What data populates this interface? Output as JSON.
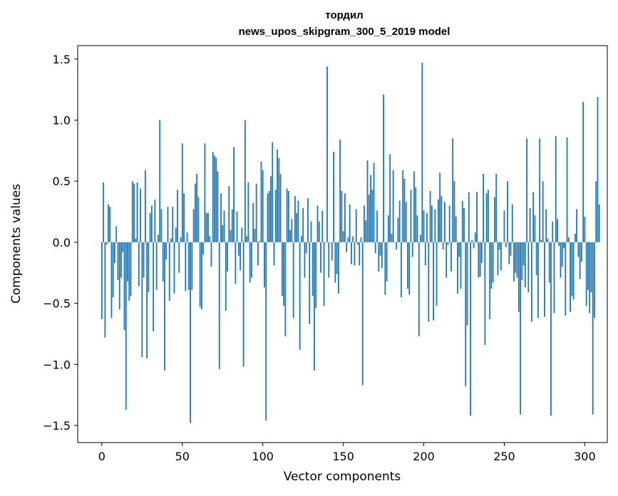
{
  "chart_data": {
    "type": "bar",
    "title": "тордил",
    "subtitle": "news_upos_skipgram_300_5_2019 model",
    "xlabel": "Vector components",
    "ylabel": "Components values",
    "xlim": [
      -15,
      314
    ],
    "ylim": [
      -1.64,
      1.61
    ],
    "x_ticks": [
      0,
      50,
      100,
      150,
      200,
      250,
      300
    ],
    "y_ticks": [
      -1.5,
      -1.0,
      -0.5,
      0.0,
      0.5,
      1.0,
      1.5
    ],
    "y_tick_labels": [
      "−1.5",
      "−1.0",
      "−0.5",
      "0.0",
      "0.5",
      "1.0",
      "1.5"
    ],
    "bar_color": "#1f77b4",
    "x_start": 0,
    "values": [
      -0.63,
      0.49,
      -0.78,
      -0.02,
      0.31,
      0.29,
      -0.62,
      -0.45,
      -0.17,
      0.13,
      -0.31,
      -0.55,
      -0.29,
      -0.08,
      -0.72,
      -1.37,
      -0.32,
      -0.48,
      -0.44,
      0.5,
      0.48,
      0.03,
      0.49,
      -0.36,
      0.44,
      -0.94,
      -0.29,
      0.59,
      -0.95,
      -0.41,
      0.24,
      0.3,
      -0.73,
      0.35,
      -0.39,
      0.06,
      1.0,
      0.27,
      -0.32,
      -1.05,
      -0.14,
      0.29,
      -0.48,
      0.03,
      0.29,
      -0.42,
      0.12,
      0.43,
      -0.25,
      0.04,
      0.81,
      0.4,
      -0.4,
      0.08,
      -0.39,
      -1.48,
      -0.39,
      0.27,
      0.48,
      0.56,
      0.37,
      -0.53,
      -0.55,
      -0.1,
      0.81,
      0.24,
      0.24,
      0.05,
      -0.2,
      0.74,
      0.71,
      0.69,
      0.58,
      -1.04,
      0.4,
      0.14,
      0.26,
      -0.56,
      -0.24,
      0.46,
      0.1,
      0.27,
      0.78,
      -0.34,
      0.25,
      -0.11,
      -0.23,
      0.12,
      -1.02,
      1.0,
      0.05,
      0.49,
      -0.33,
      -0.29,
      0.32,
      0.11,
      0.48,
      -0.19,
      0.01,
      0.66,
      0.59,
      -0.37,
      -1.46,
      0.4,
      0.42,
      0.54,
      0.82,
      -0.19,
      0.43,
      0.76,
      0.69,
      0.56,
      -0.44,
      -0.52,
      -0.77,
      0.44,
      0.42,
      0.1,
      0.19,
      -0.62,
      0.38,
      0.24,
      0.34,
      -0.88,
      0.05,
      0.28,
      -0.29,
      -0.09,
      0.36,
      -0.67,
      0.17,
      -0.44,
      -1.05,
      -0.54,
      0.3,
      0.17,
      -0.25,
      0.26,
      -0.52,
      0.0,
      1.44,
      -0.29,
      0.0,
      -0.15,
      0.74,
      -0.33,
      -0.26,
      -0.42,
      0.84,
      0.42,
      0.09,
      0.4,
      -0.08,
      0.04,
      0.31,
      -0.18,
      0.05,
      -0.19,
      0.27,
      -0.02,
      -0.19,
      0.04,
      -1.17,
      0.3,
      0.18,
      0.67,
      0.39,
      0.55,
      0.43,
      0.65,
      -0.09,
      0.26,
      -0.24,
      -0.11,
      -0.21,
      1.21,
      -0.43,
      -0.32,
      0.22,
      0.72,
      0.07,
      0.59,
      0.0,
      -0.06,
      0.2,
      0.34,
      -0.45,
      0.59,
      0.52,
      0.33,
      -0.38,
      -0.43,
      0.43,
      -0.12,
      0.58,
      0.45,
      0.22,
      -0.77,
      0.06,
      1.47,
      0.26,
      -0.19,
      0.24,
      -0.65,
      0.42,
      0.3,
      -0.64,
      0.27,
      -0.52,
      0.35,
      0.57,
      0.38,
      -0.06,
      0.33,
      -0.29,
      -0.02,
      0.3,
      -0.24,
      0.85,
      0.5,
      0.21,
      -0.42,
      -0.12,
      -0.38,
      0.34,
      0.28,
      -1.18,
      -0.68,
      0.41,
      -1.42,
      0.02,
      -0.05,
      0.08,
      0.41,
      -0.29,
      -0.28,
      -0.17,
      0.56,
      -0.84,
      0.4,
      0.43,
      -0.63,
      -0.38,
      -0.33,
      0.37,
      0.56,
      -0.27,
      -0.06,
      -0.23,
      0.0,
      0.26,
      -0.04,
      0.5,
      -0.18,
      -0.11,
      0.31,
      -0.32,
      -0.25,
      -0.29,
      -0.57,
      -1.41,
      -0.31,
      -0.19,
      -0.37,
      0.85,
      -0.41,
      0.28,
      -0.65,
      0.41,
      0.22,
      -0.27,
      -0.62,
      0.85,
      0.02,
      0.5,
      -0.61,
      0.27,
      0.03,
      -0.33,
      -1.42,
      0.17,
      -0.58,
      0.87,
      0.19,
      -0.03,
      -0.29,
      -0.2,
      -0.05,
      -0.6,
      0.86,
      0.04,
      -0.57,
      -0.44,
      -0.47,
      0.07,
      0.27,
      -0.12,
      -0.3,
      -0.16,
      1.15,
      0.21,
      -0.52,
      -0.39,
      -0.58,
      -0.41,
      -1.41,
      -0.62,
      0.5,
      1.19,
      0.31
    ]
  }
}
